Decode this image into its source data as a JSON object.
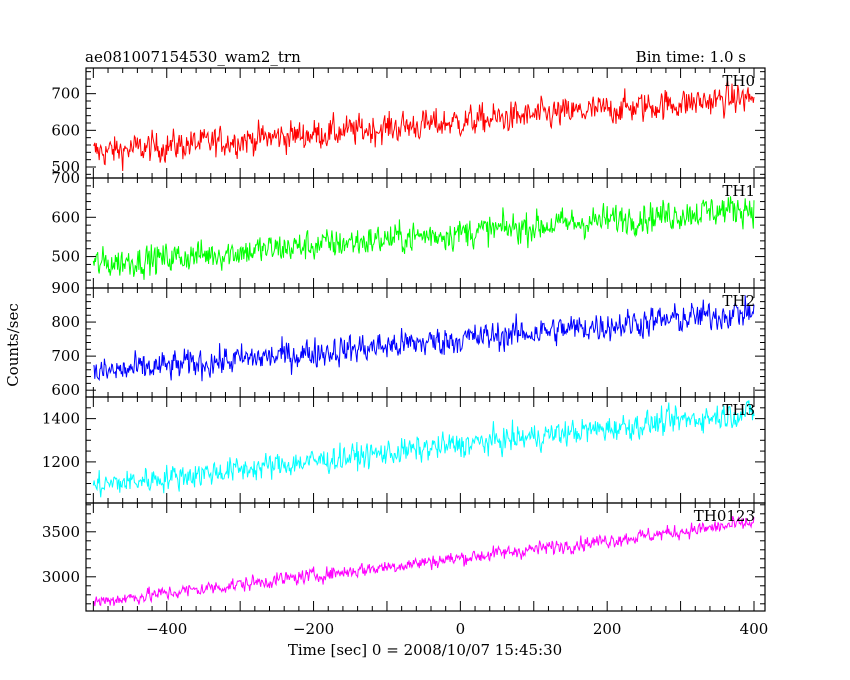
{
  "header": {
    "title": "ae081007154530_wam2_trn",
    "bin_time": "Bin time: 1.0 s"
  },
  "chart_data": {
    "type": "line",
    "xlabel": "Time [sec] 0 = 2008/10/07 15:45:30",
    "ylabel": "Counts/sec",
    "xlim": [
      -510,
      415
    ],
    "x_ticks": [
      -400,
      -200,
      0,
      200,
      400
    ],
    "x_tick_labels": [
      "−400",
      "−200",
      "0",
      "200",
      "400"
    ],
    "x_range": [
      -500,
      400
    ],
    "panels": [
      {
        "name": "TH0",
        "color": "#ff0000",
        "ylim": [
          470,
          770
        ],
        "ticks": [
          500,
          600,
          700
        ],
        "tick_labels": [
          "500",
          "600",
          "700"
        ],
        "start": 540,
        "end": 690,
        "noise": 38
      },
      {
        "name": "TH1",
        "color": "#00ff00",
        "ylim": [
          420,
          700
        ],
        "ticks": [
          500,
          600,
          700
        ],
        "tick_labels": [
          "500",
          "600",
          "700"
        ],
        "start": 480,
        "end": 625,
        "noise": 36
      },
      {
        "name": "TH2",
        "color": "#0000ff",
        "ylim": [
          580,
          900
        ],
        "ticks": [
          600,
          700,
          800,
          900
        ],
        "tick_labels": [
          "600",
          "700",
          "800",
          "900"
        ],
        "start": 650,
        "end": 830,
        "noise": 40
      },
      {
        "name": "TH3",
        "color": "#00ffff",
        "ylim": [
          1010,
          1500
        ],
        "ticks": [
          1200,
          1400
        ],
        "tick_labels": [
          "1200",
          "1400"
        ],
        "start": 1090,
        "end": 1430,
        "noise": 55
      },
      {
        "name": "TH0123",
        "color": "#ff00ff",
        "ylim": [
          2620,
          3820
        ],
        "ticks": [
          3000,
          3500
        ],
        "tick_labels": [
          "3000",
          "3500"
        ],
        "start": 2720,
        "end": 3600,
        "noise": 75
      }
    ]
  }
}
